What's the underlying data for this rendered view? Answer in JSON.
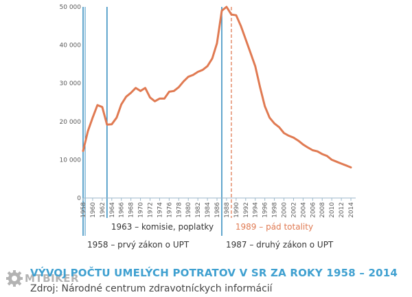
{
  "chart_data": {
    "type": "line",
    "title": "",
    "xlabel": "",
    "ylabel": "",
    "xlim": [
      1958,
      2015
    ],
    "ylim": [
      0,
      50000
    ],
    "y_ticks": [
      0,
      10000,
      20000,
      30000,
      40000,
      50000
    ],
    "y_tick_labels": [
      "0",
      "10 000",
      "20 000",
      "30 000",
      "40 000",
      "50 000"
    ],
    "x_ticks": [
      1958,
      1960,
      1962,
      1964,
      1966,
      1968,
      1970,
      1972,
      1974,
      1976,
      1978,
      1980,
      1982,
      1984,
      1986,
      1988,
      1990,
      1992,
      1994,
      1996,
      1998,
      2000,
      2002,
      2004,
      2006,
      2008,
      2010,
      2012,
      2014
    ],
    "grid": false,
    "line_color": "#e07a52",
    "marker_color": "#3a8fc0",
    "x": [
      1958,
      1959,
      1960,
      1961,
      1962,
      1963,
      1964,
      1965,
      1966,
      1967,
      1968,
      1969,
      1970,
      1971,
      1972,
      1973,
      1974,
      1975,
      1976,
      1977,
      1978,
      1979,
      1980,
      1981,
      1982,
      1983,
      1984,
      1985,
      1986,
      1987,
      1988,
      1989,
      1990,
      1991,
      1992,
      1993,
      1994,
      1995,
      1996,
      1997,
      1998,
      1999,
      2000,
      2001,
      2002,
      2003,
      2004,
      2005,
      2006,
      2007,
      2008,
      2009,
      2010,
      2011,
      2012,
      2013,
      2014
    ],
    "values": [
      12300,
      17500,
      21000,
      24300,
      23800,
      19200,
      19300,
      21000,
      24500,
      26500,
      27500,
      28800,
      28000,
      28800,
      26300,
      25300,
      26000,
      26000,
      27800,
      28000,
      29000,
      30500,
      31700,
      32200,
      33000,
      33500,
      34500,
      36500,
      40500,
      49000,
      50000,
      48000,
      47800,
      45000,
      41500,
      38000,
      34500,
      29000,
      24000,
      21000,
      19500,
      18500,
      17000,
      16300,
      15800,
      15000,
      14000,
      13200,
      12500,
      12200,
      11500,
      11000,
      10000,
      9500,
      9000,
      8500,
      8000
    ],
    "markers": [
      {
        "year": 1958,
        "label": "1958 – prvý zákon o UPT",
        "style": "solid",
        "color": "#3a8fc0"
      },
      {
        "year": 1963,
        "label": "1963 – komisie, poplatky",
        "style": "solid",
        "color": "#3a8fc0"
      },
      {
        "year": 1987,
        "label": "1987 – druhý zákon o UPT",
        "style": "solid",
        "color": "#3a8fc0"
      },
      {
        "year": 1989,
        "label": "1989 – pád totality",
        "style": "dashed",
        "color": "#e07a52"
      }
    ]
  },
  "caption": {
    "title": "VÝVOJ POČTU UMELÝCH POTRATOV V SR ZA ROKY 1958 – 2014",
    "source": "Zdroj: Národné centrum zdravotníckych informácií"
  },
  "watermark": {
    "text": "MTBIKER",
    "icon": "gear-icon"
  }
}
